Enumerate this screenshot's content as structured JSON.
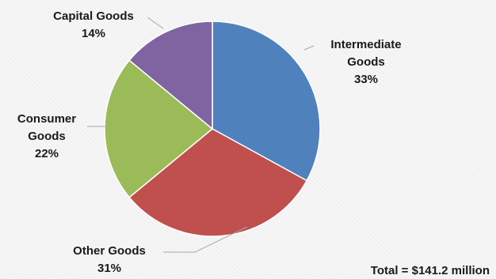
{
  "chart_data": {
    "type": "pie",
    "slices": [
      {
        "label_lines": [
          "Intermediate",
          "Goods"
        ],
        "percent_label": "33%",
        "value": 33,
        "color": "#4f81bd"
      },
      {
        "label_lines": [
          "Other Goods"
        ],
        "percent_label": "31%",
        "value": 31,
        "color": "#c0504d"
      },
      {
        "label_lines": [
          "Consumer",
          "Goods"
        ],
        "percent_label": "22%",
        "value": 22,
        "color": "#9bbb59"
      },
      {
        "label_lines": [
          "Capital Goods"
        ],
        "percent_label": "14%",
        "value": 14,
        "color": "#8064a2"
      }
    ],
    "start_angle": "12 o'clock, clockwise",
    "total_label": "Total = $141.2 million"
  }
}
